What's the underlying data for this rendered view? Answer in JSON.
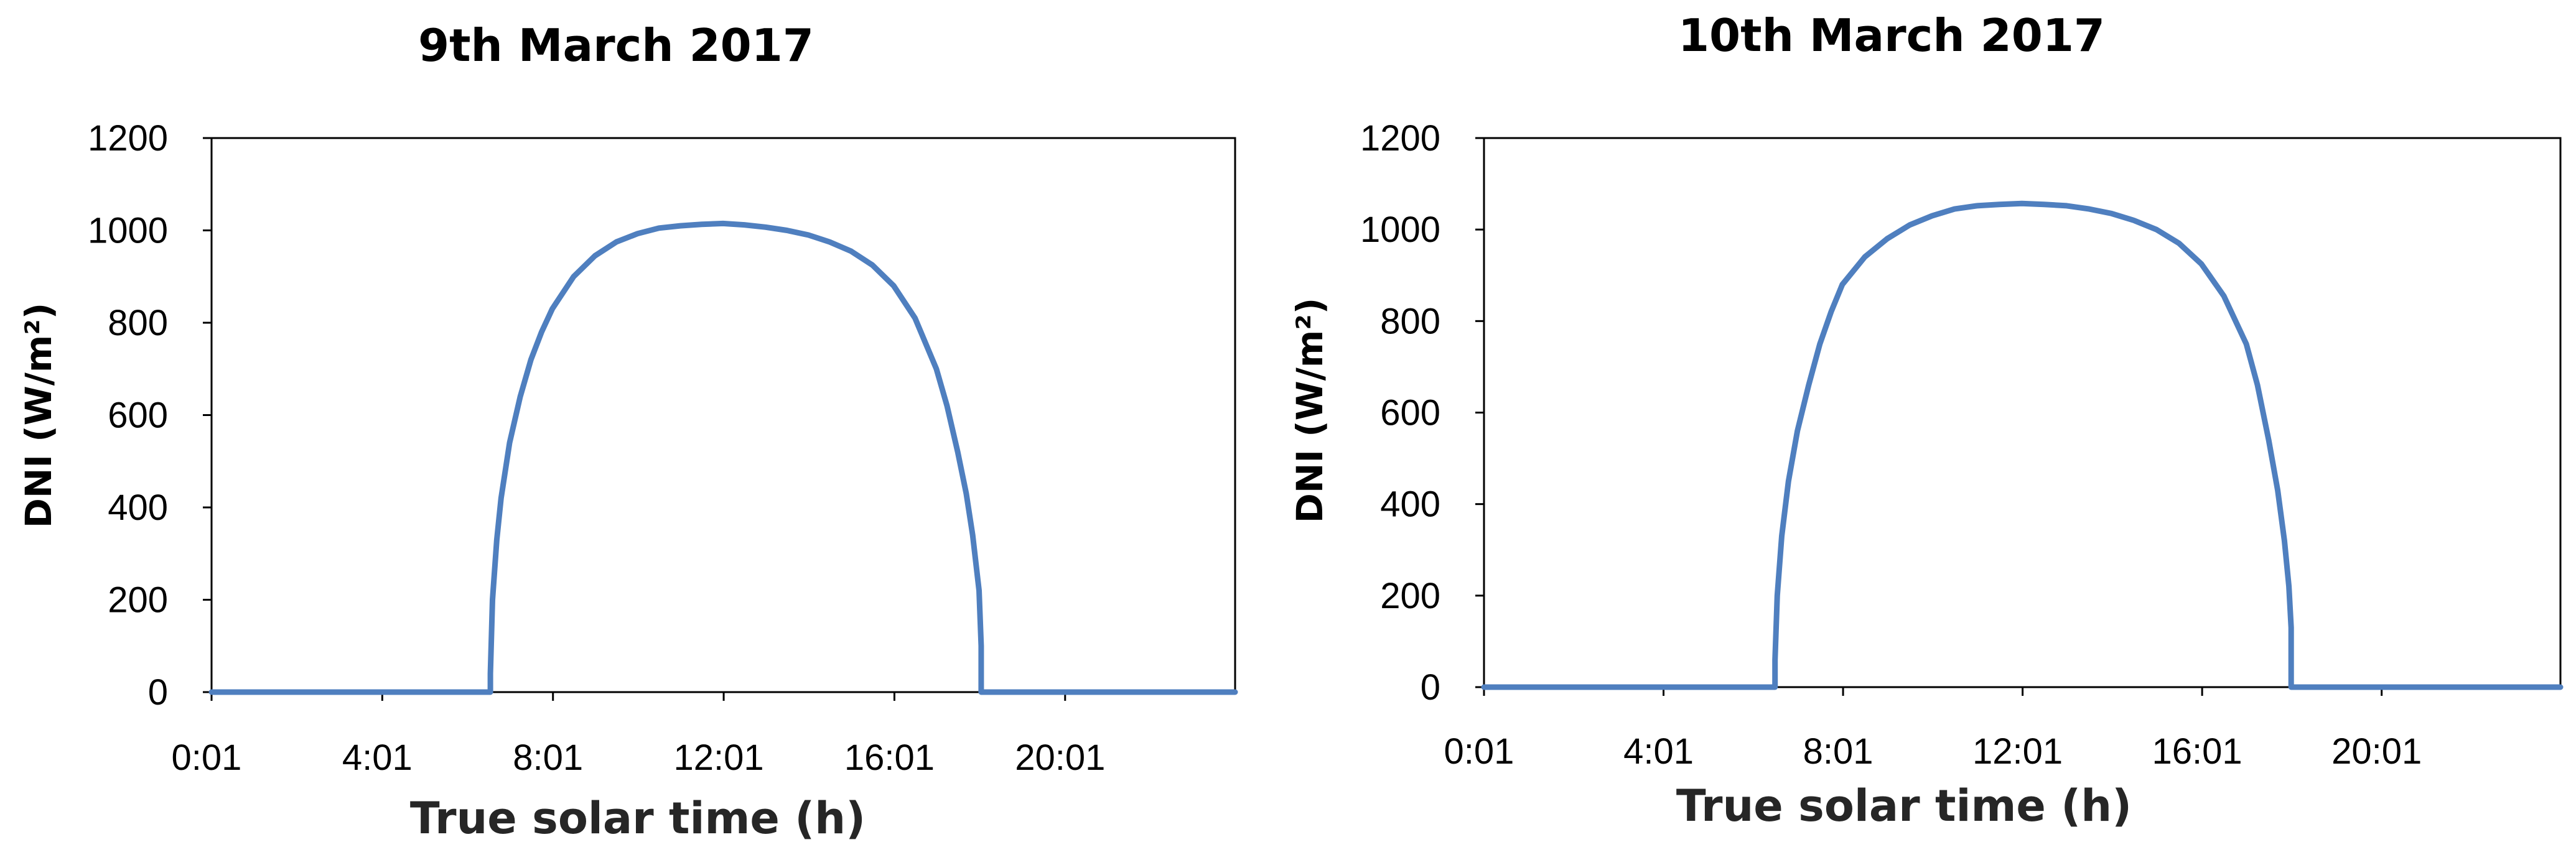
{
  "chart_data": [
    {
      "type": "line",
      "title": "9th March 2017",
      "xlabel": "True solar time (h)",
      "ylabel": "DNI (W/m²)",
      "ylim": [
        0,
        1200
      ],
      "yticks": [
        "0",
        "200",
        "400",
        "600",
        "800",
        "1000",
        "1200"
      ],
      "xlim_hours": [
        0.0167,
        24.0
      ],
      "xticks": [
        {
          "label": "0:01",
          "hour": 0.0167
        },
        {
          "label": "4:01",
          "hour": 4.0167
        },
        {
          "label": "8:01",
          "hour": 8.0167
        },
        {
          "label": "12:01",
          "hour": 12.0167
        },
        {
          "label": "16:01",
          "hour": 16.0167
        },
        {
          "label": "20:01",
          "hour": 20.0167
        }
      ],
      "grid": false,
      "color": "#4f7fbf",
      "series": [
        {
          "x": [
            0.0167,
            6.55,
            6.55,
            6.6,
            6.7,
            6.8,
            7.0,
            7.25,
            7.5,
            7.75,
            8.0,
            8.5,
            9.0,
            9.5,
            10.0,
            10.5,
            11.0,
            11.5,
            12.0,
            12.5,
            13.0,
            13.5,
            14.0,
            14.5,
            15.0,
            15.5,
            16.0,
            16.5,
            17.0,
            17.25,
            17.5,
            17.7,
            17.85,
            18.0,
            18.05,
            18.05,
            24.0
          ],
          "y": [
            0,
            0,
            40,
            200,
            330,
            420,
            540,
            640,
            720,
            780,
            830,
            900,
            945,
            975,
            993,
            1005,
            1010,
            1013,
            1015,
            1012,
            1007,
            1000,
            990,
            975,
            955,
            925,
            880,
            810,
            700,
            620,
            520,
            430,
            340,
            220,
            100,
            0,
            0
          ]
        }
      ]
    },
    {
      "type": "line",
      "title": "10th March 2017",
      "xlabel": "True solar time (h)",
      "ylabel": "DNI (W/m²)",
      "ylim": [
        0,
        1200
      ],
      "yticks": [
        "0",
        "200",
        "400",
        "600",
        "800",
        "1000",
        "1200"
      ],
      "xlim_hours": [
        0.0167,
        24.0
      ],
      "xticks": [
        {
          "label": "0:01",
          "hour": 0.0167
        },
        {
          "label": "4:01",
          "hour": 4.0167
        },
        {
          "label": "8:01",
          "hour": 8.0167
        },
        {
          "label": "12:01",
          "hour": 12.0167
        },
        {
          "label": "16:01",
          "hour": 16.0167
        },
        {
          "label": "20:01",
          "hour": 20.0167
        }
      ],
      "grid": false,
      "color": "#4f7fbf",
      "series": [
        {
          "x": [
            0.0167,
            6.5,
            6.5,
            6.55,
            6.65,
            6.8,
            7.0,
            7.25,
            7.5,
            7.75,
            8.0,
            8.5,
            9.0,
            9.5,
            10.0,
            10.5,
            11.0,
            11.5,
            12.0,
            12.5,
            13.0,
            13.5,
            14.0,
            14.5,
            15.0,
            15.5,
            16.0,
            16.5,
            17.0,
            17.25,
            17.5,
            17.7,
            17.85,
            17.95,
            18.0,
            18.0,
            24.0
          ],
          "y": [
            0,
            0,
            60,
            200,
            330,
            450,
            560,
            660,
            750,
            820,
            880,
            940,
            980,
            1010,
            1030,
            1045,
            1052,
            1055,
            1057,
            1055,
            1052,
            1045,
            1035,
            1020,
            1000,
            970,
            925,
            855,
            750,
            660,
            540,
            430,
            320,
            220,
            130,
            0,
            0
          ]
        }
      ]
    }
  ]
}
